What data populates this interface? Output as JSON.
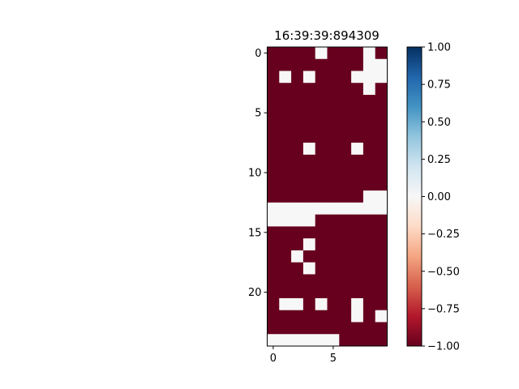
{
  "chart_data": {
    "type": "heatmap",
    "title": "16:39:39:894309",
    "rows": 25,
    "cols": 10,
    "values": [
      [
        -1,
        -1,
        -1,
        -1,
        0,
        -1,
        -1,
        -1,
        0,
        -1
      ],
      [
        -1,
        -1,
        -1,
        -1,
        -1,
        -1,
        -1,
        -1,
        0,
        0
      ],
      [
        -1,
        0,
        -1,
        0,
        -1,
        -1,
        -1,
        0,
        0,
        0
      ],
      [
        -1,
        -1,
        -1,
        -1,
        -1,
        -1,
        -1,
        -1,
        0,
        -1
      ],
      [
        -1,
        -1,
        -1,
        -1,
        -1,
        -1,
        -1,
        -1,
        -1,
        -1
      ],
      [
        -1,
        -1,
        -1,
        -1,
        -1,
        -1,
        -1,
        -1,
        -1,
        -1
      ],
      [
        -1,
        -1,
        -1,
        -1,
        -1,
        -1,
        -1,
        -1,
        -1,
        -1
      ],
      [
        -1,
        -1,
        -1,
        -1,
        -1,
        -1,
        -1,
        -1,
        -1,
        -1
      ],
      [
        -1,
        -1,
        -1,
        0,
        -1,
        -1,
        -1,
        0,
        -1,
        -1
      ],
      [
        -1,
        -1,
        -1,
        -1,
        -1,
        -1,
        -1,
        -1,
        -1,
        -1
      ],
      [
        -1,
        -1,
        -1,
        -1,
        -1,
        -1,
        -1,
        -1,
        -1,
        -1
      ],
      [
        -1,
        -1,
        -1,
        -1,
        -1,
        -1,
        -1,
        -1,
        -1,
        -1
      ],
      [
        -1,
        -1,
        -1,
        -1,
        -1,
        -1,
        -1,
        -1,
        0,
        0
      ],
      [
        0,
        0,
        0,
        0,
        0,
        0,
        0,
        0,
        0,
        0
      ],
      [
        0,
        0,
        0,
        0,
        -1,
        -1,
        -1,
        -1,
        -1,
        -1
      ],
      [
        -1,
        -1,
        -1,
        -1,
        -1,
        -1,
        -1,
        -1,
        -1,
        -1
      ],
      [
        -1,
        -1,
        -1,
        0,
        -1,
        -1,
        -1,
        -1,
        -1,
        -1
      ],
      [
        -1,
        -1,
        0,
        -1,
        -1,
        -1,
        -1,
        -1,
        -1,
        -1
      ],
      [
        -1,
        -1,
        -1,
        0,
        -1,
        -1,
        -1,
        -1,
        -1,
        -1
      ],
      [
        -1,
        -1,
        -1,
        -1,
        -1,
        -1,
        -1,
        -1,
        -1,
        -1
      ],
      [
        -1,
        -1,
        -1,
        -1,
        -1,
        -1,
        -1,
        -1,
        -1,
        -1
      ],
      [
        -1,
        0,
        0,
        -1,
        0,
        -1,
        -1,
        0,
        -1,
        -1
      ],
      [
        -1,
        -1,
        -1,
        -1,
        -1,
        -1,
        -1,
        0,
        -1,
        0
      ],
      [
        -1,
        -1,
        -1,
        -1,
        -1,
        -1,
        -1,
        -1,
        -1,
        -1
      ],
      [
        0,
        0,
        0,
        0,
        0,
        0,
        -1,
        -1,
        -1,
        -1
      ]
    ],
    "x_ticks": [
      0,
      5
    ],
    "x_tick_labels": [
      "0",
      "5"
    ],
    "y_ticks": [
      0,
      5,
      10,
      15,
      20
    ],
    "y_tick_labels": [
      "0",
      "5",
      "10",
      "15",
      "20"
    ],
    "colorbar": {
      "colormap": "RdBu",
      "vmin": -1.0,
      "vmax": 1.0,
      "ticks": [
        1.0,
        0.75,
        0.5,
        0.25,
        0.0,
        -0.25,
        -0.5,
        -0.75,
        -1.0
      ],
      "tick_labels": [
        "1.00",
        "0.75",
        "0.50",
        "0.25",
        "0.00",
        "−0.25",
        "−0.50",
        "−0.75",
        "−1.00"
      ]
    },
    "grid": false
  }
}
